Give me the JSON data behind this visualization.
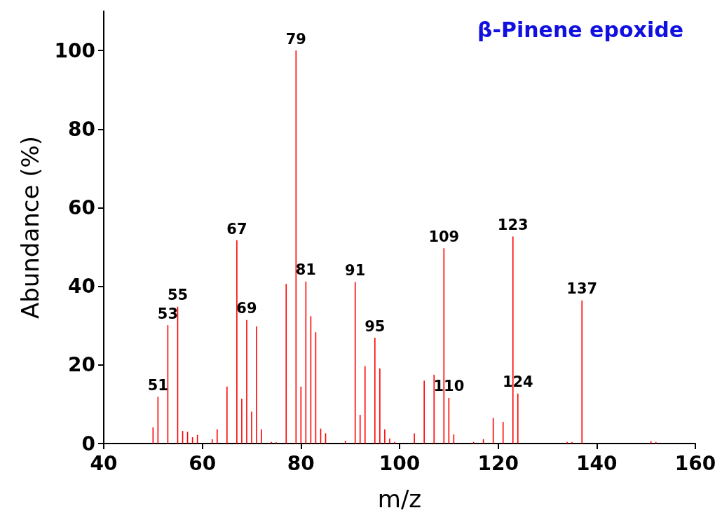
{
  "chart_data": {
    "type": "bar",
    "title": "β-Pinene epoxide",
    "xlabel": "m/z",
    "ylabel": "Abundance (%)",
    "color": "#ff0000",
    "x": [
      50,
      51,
      53,
      55,
      56,
      57,
      58,
      59,
      62,
      63,
      65,
      67,
      68,
      69,
      70,
      71,
      72,
      74,
      75,
      77,
      79,
      80,
      81,
      82,
      83,
      84,
      85,
      89,
      91,
      92,
      93,
      95,
      96,
      97,
      98,
      99,
      103,
      105,
      107,
      109,
      110,
      111,
      115,
      117,
      119,
      121,
      123,
      124,
      134,
      135,
      137,
      151,
      152
    ],
    "values": [
      4.1,
      11.9,
      30.1,
      34.8,
      3.2,
      3.0,
      1.6,
      2.2,
      1.1,
      3.6,
      14.5,
      51.7,
      11.4,
      31.4,
      8.1,
      29.8,
      3.6,
      0.4,
      0.3,
      40.6,
      100,
      14.5,
      41.2,
      32.4,
      28.3,
      3.8,
      2.6,
      0.7,
      41.1,
      7.3,
      19.7,
      26.9,
      19.1,
      3.6,
      1.3,
      0.4,
      2.6,
      16.0,
      17.5,
      49.7,
      11.6,
      2.3,
      0.4,
      1.1,
      6.5,
      5.5,
      52.7,
      12.7,
      0.4,
      0.4,
      36.4,
      0.6,
      0.4
    ],
    "annotations": [
      {
        "text": "51",
        "x": 51,
        "y": 11.9
      },
      {
        "text": "53",
        "x": 53,
        "y": 30.1
      },
      {
        "text": "55",
        "x": 55,
        "y": 34.8
      },
      {
        "text": "67",
        "x": 67,
        "y": 51.7
      },
      {
        "text": "69",
        "x": 69,
        "y": 31.4
      },
      {
        "text": "79",
        "x": 79,
        "y": 100
      },
      {
        "text": "81",
        "x": 81,
        "y": 41.2
      },
      {
        "text": "91",
        "x": 91,
        "y": 41.1
      },
      {
        "text": "95",
        "x": 95,
        "y": 26.9
      },
      {
        "text": "109",
        "x": 109,
        "y": 49.7
      },
      {
        "text": "110",
        "x": 110,
        "y": 11.6
      },
      {
        "text": "123",
        "x": 123,
        "y": 52.7
      },
      {
        "text": "124",
        "x": 124,
        "y": 12.7
      },
      {
        "text": "137",
        "x": 137,
        "y": 36.4
      }
    ],
    "xlim": [
      40,
      160
    ],
    "xticks": [
      40,
      60,
      80,
      100,
      120,
      140,
      160
    ],
    "ylim": [
      0,
      110
    ],
    "yticks": [
      0,
      20,
      40,
      60,
      80,
      100
    ],
    "grid": false
  }
}
